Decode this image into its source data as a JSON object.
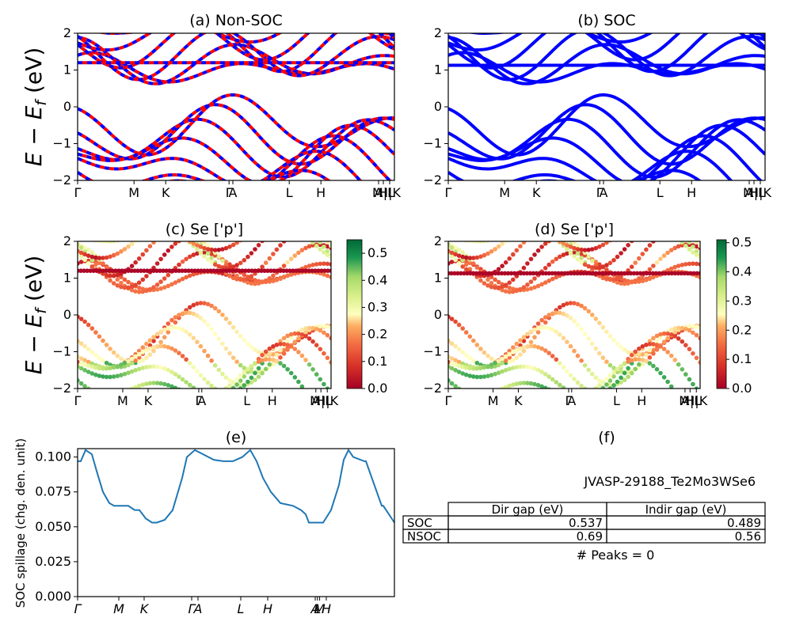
{
  "chart_data": [
    {
      "panel": "a",
      "type": "line",
      "title": "(a) Non-SOC",
      "ylabel": "E - E_f (eV)",
      "ylim": [
        -2,
        2
      ],
      "yticks": [
        "2",
        "1",
        "0",
        "−1",
        "−2"
      ],
      "xticks": [
        "Γ",
        "M",
        "K",
        "Γ",
        "A",
        "L",
        "H",
        "A",
        "M|L",
        "H|K"
      ],
      "series": [
        {
          "color": "#ff0000"
        },
        {
          "color": "#0000ff"
        }
      ],
      "flat_band_level": 1.2,
      "valence_max": 0.0,
      "conduction_min": 0.56,
      "style": "dashed red/blue overlapping bands"
    },
    {
      "panel": "b",
      "type": "line",
      "title": "(b) SOC",
      "ylim": [
        -2,
        2
      ],
      "yticks": [
        "2",
        "1",
        "0",
        "−1",
        "−2"
      ],
      "xticks": [
        "Γ",
        "M",
        "K",
        "Γ",
        "A",
        "L",
        "H",
        "A",
        "M|L",
        "H|K"
      ],
      "series": [
        {
          "color": "#0000ff"
        }
      ],
      "flat_band_level": 1.13,
      "valence_max": 0.0,
      "conduction_min": 0.49
    },
    {
      "panel": "c",
      "type": "scatter",
      "title": "(c)  Se ['p']",
      "ylabel": "E - E_f (eV)",
      "ylim": [
        -2,
        2
      ],
      "yticks": [
        "2",
        "1",
        "0",
        "−1",
        "−2"
      ],
      "xticks": [
        "Γ",
        "M",
        "K",
        "Γ",
        "A",
        "L",
        "H",
        "A",
        "M|L",
        "H|K"
      ],
      "colormap": "RdYlGn",
      "colorbar_range": [
        0.0,
        0.55
      ],
      "colorbar_ticks": [
        "0.5",
        "0.4",
        "0.3",
        "0.2",
        "0.1",
        "0.0"
      ]
    },
    {
      "panel": "d",
      "type": "scatter",
      "title": "(d) Se ['p']",
      "ylim": [
        -2,
        2
      ],
      "yticks": [
        "2",
        "1",
        "0",
        "−1",
        "−2"
      ],
      "xticks": [
        "Γ",
        "M",
        "K",
        "Γ",
        "A",
        "L",
        "H",
        "A",
        "M|L",
        "H|K"
      ],
      "colormap": "RdYlGn",
      "colorbar_range": [
        0.0,
        0.51
      ],
      "colorbar_ticks": [
        "0.5",
        "0.4",
        "0.3",
        "0.2",
        "0.1",
        "0.0"
      ]
    },
    {
      "panel": "e",
      "type": "line",
      "title": "(e)",
      "ylabel": "SOC spillage (chg. den. unit)",
      "ylim": [
        0,
        0.106
      ],
      "yticks": [
        "0.100",
        "0.075",
        "0.050",
        "0.025",
        "0.000"
      ],
      "ytick_values": [
        0.1,
        0.075,
        0.05,
        0.025,
        0.0
      ],
      "xticks": [
        "Γ",
        "M",
        "K",
        "Γ",
        "A",
        "L",
        "H",
        "A",
        "L",
        "M",
        "H"
      ],
      "xlim": [
        0,
        1
      ],
      "series": [
        {
          "color": "#1f77b4",
          "x": [
            0,
            0.01,
            0.025,
            0.045,
            0.06,
            0.08,
            0.1,
            0.115,
            0.13,
            0.16,
            0.18,
            0.195,
            0.215,
            0.235,
            0.25,
            0.275,
            0.3,
            0.33,
            0.345,
            0.37,
            0.43,
            0.46,
            0.49,
            0.52,
            0.545,
            0.565,
            0.585,
            0.61,
            0.64,
            0.68,
            0.705,
            0.72,
            0.73,
            0.745,
            0.775,
            0.8,
            0.825,
            0.84,
            0.855,
            0.87,
            0.905,
            0.91,
            0.96,
            0.965,
            1.0
          ],
          "y": [
            0.097,
            0.097,
            0.105,
            0.102,
            0.09,
            0.075,
            0.067,
            0.065,
            0.065,
            0.065,
            0.062,
            0.062,
            0.056,
            0.053,
            0.053,
            0.055,
            0.062,
            0.085,
            0.1,
            0.105,
            0.098,
            0.097,
            0.097,
            0.1,
            0.105,
            0.097,
            0.085,
            0.075,
            0.067,
            0.065,
            0.062,
            0.059,
            0.053,
            0.053,
            0.053,
            0.062,
            0.08,
            0.098,
            0.105,
            0.1,
            0.097,
            0.097,
            0.065,
            0.065,
            0.053
          ]
        }
      ]
    },
    {
      "panel": "f",
      "type": "table",
      "title": "(f)",
      "material": "JVASP-29188_Te2Mo3WSe6",
      "columns": [
        "Dir gap (eV)",
        "Indir gap (eV)"
      ],
      "rows": [
        {
          "label": "SOC",
          "dir": "0.537",
          "indir": "0.489"
        },
        {
          "label": "NSOC",
          "dir": "0.69",
          "indir": "0.56"
        }
      ],
      "footer": "# Peaks = 0"
    }
  ]
}
